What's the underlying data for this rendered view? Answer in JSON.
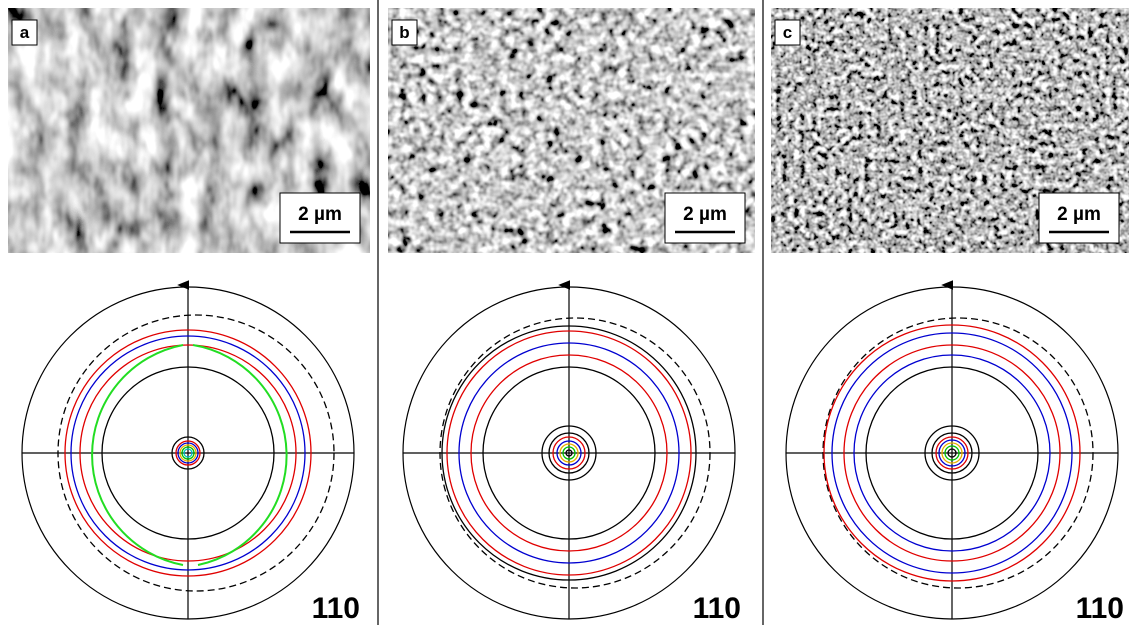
{
  "panels": [
    {
      "label": "a",
      "scale_bar": "2 µm",
      "pole_figure": "110"
    },
    {
      "label": "b",
      "scale_bar": "2 µm",
      "pole_figure": "110"
    },
    {
      "label": "c",
      "scale_bar": "2 µm",
      "pole_figure": "110"
    }
  ]
}
